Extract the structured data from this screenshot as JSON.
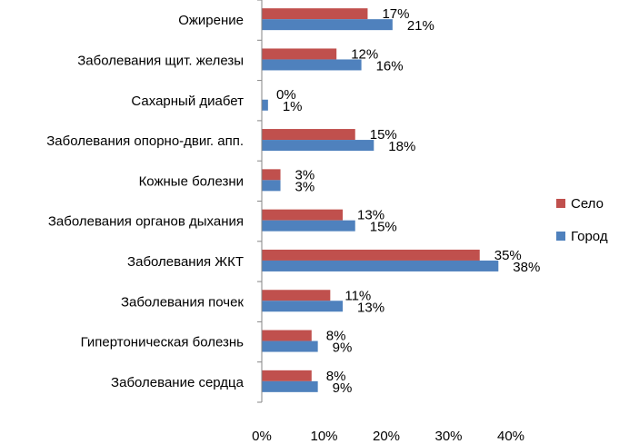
{
  "chart_data": {
    "type": "bar",
    "orientation": "horizontal",
    "categories": [
      "Ожирение",
      "Заболевания щит. железы",
      "Сахарный диабет",
      "Заболевания опорно-двиг. апп.",
      "Кожные болезни",
      "Заболевания органов дыхания",
      "Заболевания ЖКТ",
      "Заболевания почек",
      "Гипертоническая болезнь",
      "Заболевание сердца"
    ],
    "series": [
      {
        "name": "Село",
        "color": "#C0504D",
        "values": [
          17,
          12,
          0,
          15,
          3,
          13,
          35,
          11,
          8,
          8
        ],
        "labels": [
          "17%",
          "12%",
          "0%",
          "15%",
          "3%",
          "13%",
          "35%",
          "11%",
          "8%",
          "8%"
        ]
      },
      {
        "name": "Город",
        "color": "#4F81BD",
        "values": [
          21,
          16,
          1,
          18,
          3,
          15,
          38,
          13,
          9,
          9
        ],
        "labels": [
          "21%",
          "16%",
          "1%",
          "18%",
          "3%",
          "15%",
          "38%",
          "13%",
          "9%",
          "9%"
        ]
      }
    ],
    "xlim": [
      0,
      40
    ],
    "ticks": [
      "0%",
      "10%",
      "20%",
      "30%",
      "40%"
    ],
    "grid": false,
    "legend_position": "right"
  }
}
